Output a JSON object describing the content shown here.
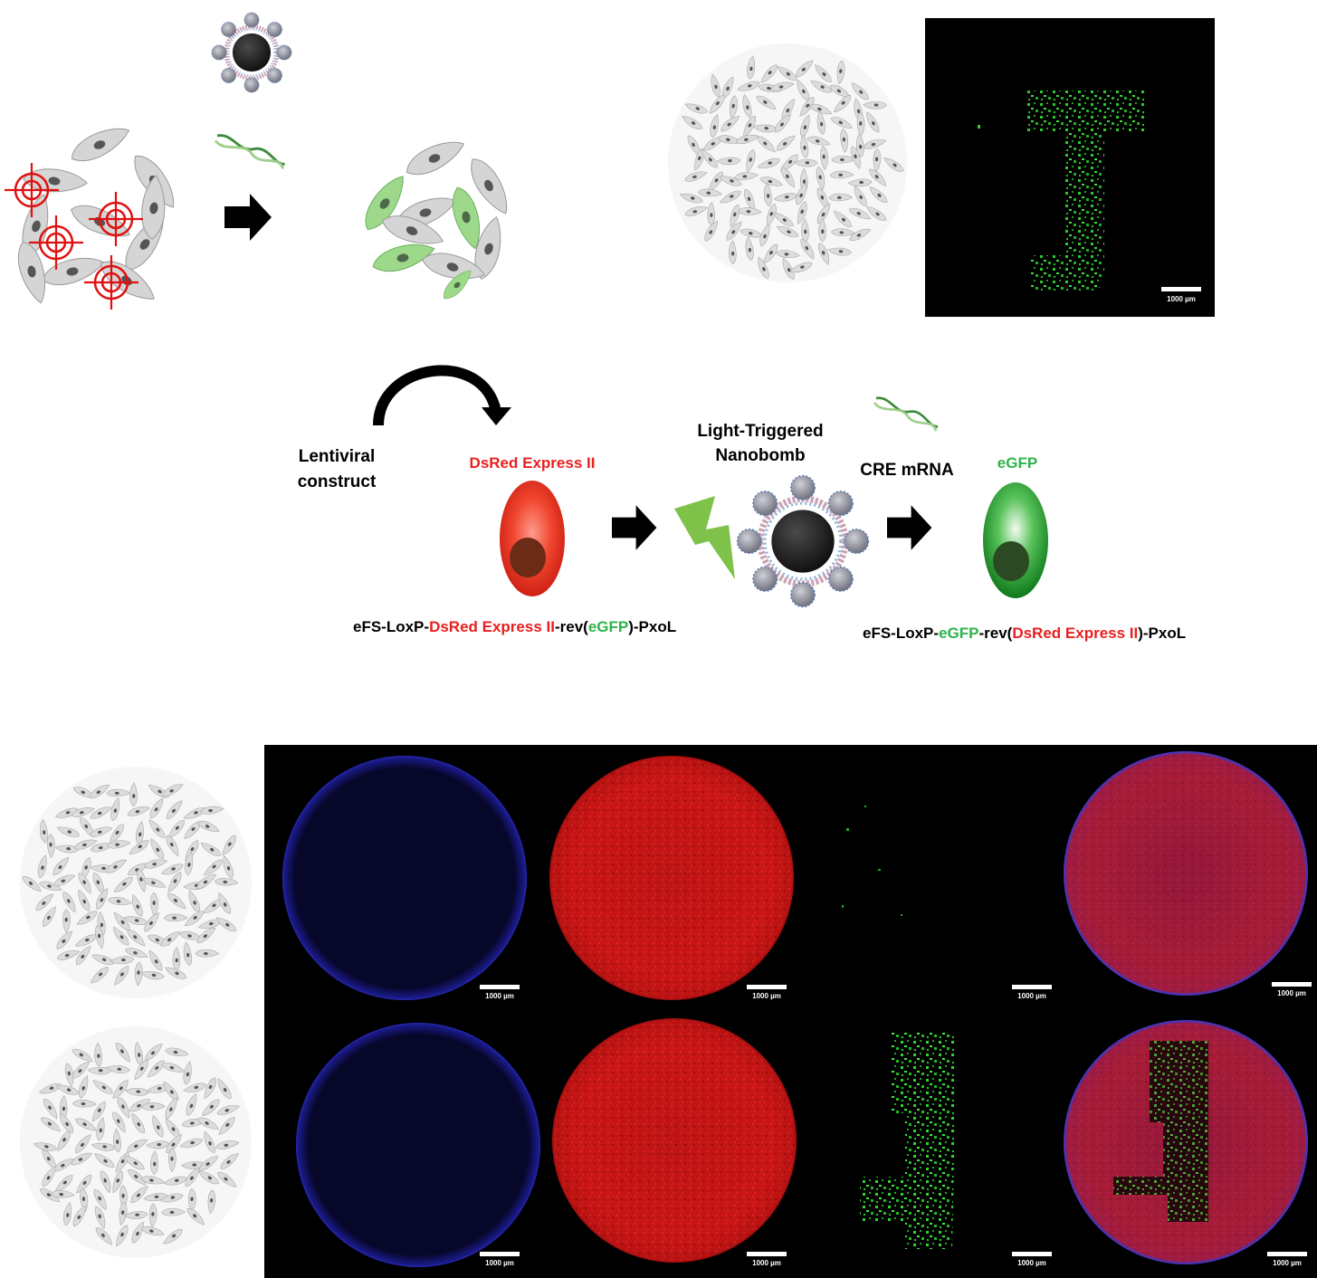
{
  "labels": {
    "lentiviral_line1": "Lentiviral",
    "lentiviral_line2": "construct",
    "dsred_title": "DsRed Express II",
    "nanobomb_line1": "Light-Triggered",
    "nanobomb_line2": "Nanobomb",
    "cre_mrna": "CRE mRNA",
    "egfp_title": "eGFP"
  },
  "construct_before": {
    "part1": "eFS-LoxP-",
    "part2": "DsRed Express II",
    "part3": "-rev(",
    "part4": "eGFP",
    "part5": ")-PxoL"
  },
  "construct_after": {
    "part1": "eFS-LoxP-",
    "part2": "eGFP",
    "part3": "-rev(",
    "part4": "DsRed Express II",
    "part5": ")-PxoL"
  },
  "scale_bar_label": "1000 µm",
  "colors": {
    "red_text": "#e8201f",
    "green_text": "#2db34a",
    "black": "#000000",
    "cell_gray": "#d9d9d9",
    "target_red": "#e01010"
  }
}
